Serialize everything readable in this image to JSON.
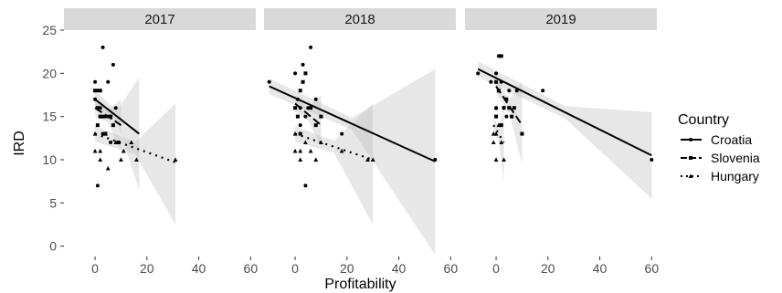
{
  "chart_data": {
    "type": "scatter",
    "xlabel": "Profitability",
    "ylabel": "IRD",
    "xlim": [
      -12,
      62
    ],
    "ylim": [
      -1.2,
      25
    ],
    "x_ticks": [
      0,
      20,
      40,
      60
    ],
    "x_tick_labels": [
      "0",
      "20",
      "40",
      "60"
    ],
    "y_ticks": [
      0,
      5,
      10,
      15,
      20,
      25
    ],
    "y_tick_labels": [
      "0",
      "5",
      "10",
      "15",
      "20",
      "25"
    ],
    "grid": false,
    "legend": {
      "title": "Country",
      "position": "right",
      "entries": [
        "Croatia",
        "Slovenia",
        "Hungary"
      ]
    },
    "panels": [
      {
        "label": "2017",
        "series": [
          {
            "name": "Croatia",
            "points": [
              [
                0,
                19
              ],
              [
                1,
                18
              ],
              [
                2,
                16
              ],
              [
                3,
                23
              ],
              [
                4,
                15
              ],
              [
                5,
                19
              ],
              [
                6,
                15
              ],
              [
                7,
                21
              ],
              [
                8,
                16
              ],
              [
                2,
                15
              ],
              [
                3,
                13
              ],
              [
                1,
                7
              ],
              [
                5,
                15
              ],
              [
                6,
                12
              ],
              [
                0,
                17
              ]
            ],
            "fit": [
              [
                0,
                17
              ],
              [
                17,
                13
              ]
            ],
            "band_lower_at_end": 6.5,
            "band_upper_at_end": 19.5
          },
          {
            "name": "Slovenia",
            "points": [
              [
                0,
                18
              ],
              [
                1,
                16
              ],
              [
                2,
                15
              ],
              [
                3,
                15
              ],
              [
                4,
                13
              ],
              [
                6,
                15
              ],
              [
                2,
                18
              ],
              [
                7,
                14
              ],
              [
                9,
                12
              ],
              [
                1,
                14
              ]
            ],
            "fit": [
              [
                0,
                16
              ],
              [
                10,
                14
              ]
            ],
            "band_lower_at_end": 11,
            "band_upper_at_end": 17
          },
          {
            "name": "Hungary",
            "points": [
              [
                0,
                13
              ],
              [
                0,
                11
              ],
              [
                2,
                10
              ],
              [
                2,
                11
              ],
              [
                5,
                9
              ],
              [
                8,
                12
              ],
              [
                10,
                10
              ],
              [
                16,
                10
              ],
              [
                31,
                10
              ],
              [
                14,
                12
              ],
              [
                11,
                11
              ],
              [
                4,
                13
              ]
            ],
            "fit": [
              [
                0,
                13
              ],
              [
                31,
                9.7
              ]
            ],
            "band_lower_at_end": 2.5,
            "band_upper_at_end": 16.5
          }
        ]
      },
      {
        "label": "2018",
        "series": [
          {
            "name": "Croatia",
            "points": [
              [
                -10,
                19
              ],
              [
                0,
                20
              ],
              [
                1,
                17
              ],
              [
                2,
                16
              ],
              [
                3,
                21
              ],
              [
                4,
                15
              ],
              [
                6,
                23
              ],
              [
                8,
                17
              ],
              [
                10,
                15
              ],
              [
                18,
                13
              ],
              [
                54,
                10
              ],
              [
                2,
                14
              ],
              [
                4,
                7
              ],
              [
                5,
                16
              ]
            ],
            "fit": [
              [
                -10,
                18.5
              ],
              [
                54,
                9.8
              ]
            ],
            "band_lower_at_end": -1,
            "band_upper_at_end": 20.5
          },
          {
            "name": "Slovenia",
            "points": [
              [
                0,
                16
              ],
              [
                1,
                15
              ],
              [
                2,
                18
              ],
              [
                3,
                19
              ],
              [
                4,
                20
              ],
              [
                6,
                16
              ],
              [
                8,
                14
              ],
              [
                10,
                15
              ],
              [
                2,
                13
              ]
            ],
            "fit": [
              [
                0,
                16.5
              ],
              [
                10,
                14
              ]
            ],
            "band_lower_at_end": 11.5,
            "band_upper_at_end": 17.5
          },
          {
            "name": "Hungary",
            "points": [
              [
                0,
                13
              ],
              [
                0,
                11
              ],
              [
                2,
                10
              ],
              [
                4,
                12
              ],
              [
                6,
                11
              ],
              [
                8,
                10
              ],
              [
                10,
                12
              ],
              [
                18,
                11
              ],
              [
                28,
                10
              ],
              [
                30,
                10
              ],
              [
                2,
                11
              ]
            ],
            "fit": [
              [
                0,
                13
              ],
              [
                30,
                10
              ]
            ],
            "band_lower_at_end": 2.5,
            "band_upper_at_end": 16.5
          }
        ]
      },
      {
        "label": "2019",
        "series": [
          {
            "name": "Croatia",
            "points": [
              [
                -7,
                20
              ],
              [
                -2,
                19
              ],
              [
                0,
                20
              ],
              [
                1,
                22
              ],
              [
                2,
                19
              ],
              [
                3,
                16
              ],
              [
                4,
                15
              ],
              [
                5,
                18
              ],
              [
                8,
                18
              ],
              [
                18,
                18
              ],
              [
                60,
                10
              ],
              [
                0,
                16
              ]
            ],
            "fit": [
              [
                -7,
                20.5
              ],
              [
                60,
                10.5
              ]
            ],
            "band_lower_at_end": 5.5,
            "band_upper_at_end": 15.5
          },
          {
            "name": "Slovenia",
            "points": [
              [
                0,
                19
              ],
              [
                1,
                18
              ],
              [
                2,
                22
              ],
              [
                3,
                16
              ],
              [
                4,
                17
              ],
              [
                5,
                16
              ],
              [
                6,
                15
              ],
              [
                7,
                16
              ],
              [
                10,
                13
              ],
              [
                0,
                15
              ],
              [
                2,
                14
              ]
            ],
            "fit": [
              [
                0,
                18.5
              ],
              [
                10,
                14
              ]
            ],
            "band_lower_at_end": 9.5,
            "band_upper_at_end": 19
          },
          {
            "name": "Hungary",
            "points": [
              [
                0,
                13
              ],
              [
                -1,
                13
              ],
              [
                0,
                10
              ],
              [
                3,
                10
              ],
              [
                1,
                14
              ],
              [
                0,
                16
              ],
              [
                -1,
                12
              ],
              [
                2,
                12
              ]
            ],
            "fit": [
              [
                -1,
                14
              ],
              [
                3,
                12
              ]
            ],
            "band_lower_at_end": 7.5,
            "band_upper_at_end": 16
          }
        ]
      }
    ]
  }
}
